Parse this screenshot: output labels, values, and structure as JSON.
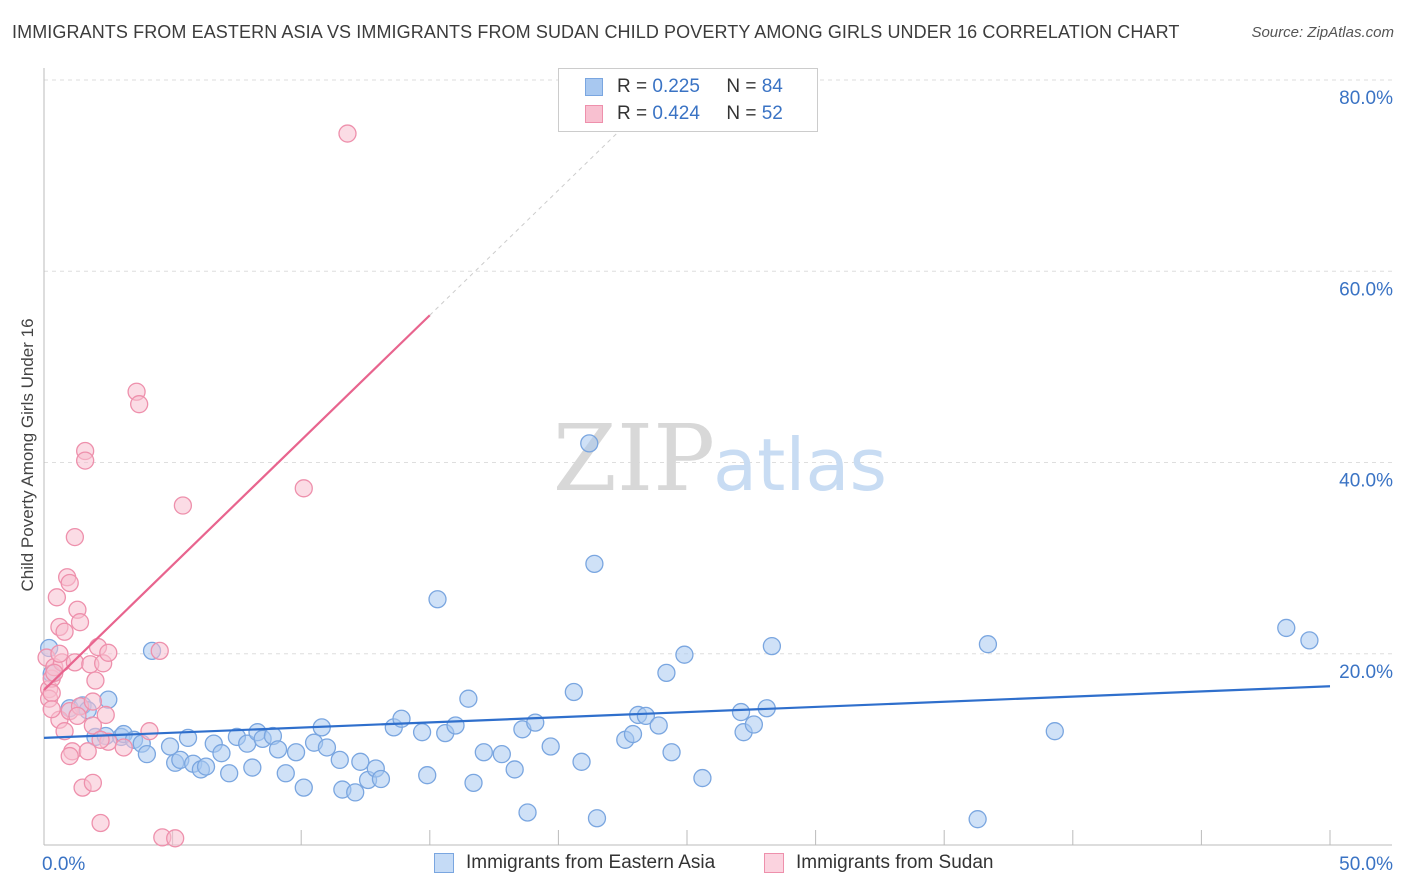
{
  "title": "IMMIGRANTS FROM EASTERN ASIA VS IMMIGRANTS FROM SUDAN CHILD POVERTY AMONG GIRLS UNDER 16 CORRELATION CHART",
  "source": "Source: ZipAtlas.com",
  "watermark": {
    "zip": "ZIP",
    "atlas": "atlas"
  },
  "legend": {
    "r_label": "R =",
    "n_label": "N =",
    "rows": [
      {
        "r": "0.225",
        "n": "84",
        "color": "#a8c8f0",
        "border": "#7aa6e0"
      },
      {
        "r": "0.424",
        "n": "52",
        "color": "#f8c0d0",
        "border": "#ee90ac"
      }
    ]
  },
  "bottom_legend": [
    {
      "label": "Immigrants from Eastern Asia",
      "color": "#c5dbf6",
      "border": "#7aa6e0"
    },
    {
      "label": "Immigrants from Sudan",
      "color": "#fbd3df",
      "border": "#ee90ac"
    }
  ],
  "chart_data": {
    "type": "scatter",
    "title": "IMMIGRANTS FROM EASTERN ASIA VS IMMIGRANTS FROM SUDAN CHILD POVERTY AMONG GIRLS UNDER 16 CORRELATION CHART",
    "xlabel": "",
    "ylabel": "Child Poverty Among Girls Under 16",
    "xlim": [
      0,
      50
    ],
    "ylim": [
      0,
      80
    ],
    "x_tick_labels": [
      {
        "value": 0,
        "label": "0.0%"
      },
      {
        "value": 50,
        "label": "50.0%"
      }
    ],
    "y_tick_labels": [
      {
        "value": 20,
        "label": "20.0%"
      },
      {
        "value": 40,
        "label": "40.0%"
      },
      {
        "value": 60,
        "label": "60.0%"
      },
      {
        "value": 80,
        "label": "80.0%"
      }
    ],
    "grid": true,
    "legend_position": "top-center",
    "series": [
      {
        "name": "Immigrants from Eastern Asia",
        "color": "#7aa6e0",
        "fill": "#a8c8f0",
        "trend": {
          "x": [
            0,
            50
          ],
          "y": [
            11.2,
            16.6
          ],
          "color": "#2f6fcc"
        },
        "points": [
          [
            0.2,
            20.6
          ],
          [
            0.3,
            17.9
          ],
          [
            1.0,
            14.3
          ],
          [
            1.5,
            14.6
          ],
          [
            1.7,
            14.1
          ],
          [
            2.0,
            11.3
          ],
          [
            2.4,
            11.4
          ],
          [
            2.5,
            15.2
          ],
          [
            3.0,
            11.3
          ],
          [
            3.1,
            11.6
          ],
          [
            3.5,
            11.0
          ],
          [
            3.8,
            10.6
          ],
          [
            4.0,
            9.5
          ],
          [
            4.2,
            20.3
          ],
          [
            4.9,
            10.3
          ],
          [
            5.1,
            8.6
          ],
          [
            5.3,
            8.9
          ],
          [
            5.6,
            11.2
          ],
          [
            5.8,
            8.5
          ],
          [
            6.1,
            7.9
          ],
          [
            6.3,
            8.2
          ],
          [
            6.6,
            10.6
          ],
          [
            6.9,
            9.6
          ],
          [
            7.2,
            7.5
          ],
          [
            7.5,
            11.3
          ],
          [
            7.9,
            10.6
          ],
          [
            8.1,
            8.1
          ],
          [
            8.3,
            11.8
          ],
          [
            8.5,
            11.1
          ],
          [
            8.9,
            11.4
          ],
          [
            9.1,
            10.0
          ],
          [
            9.4,
            7.5
          ],
          [
            9.8,
            9.7
          ],
          [
            10.1,
            6.0
          ],
          [
            10.5,
            10.7
          ],
          [
            10.8,
            12.3
          ],
          [
            11.0,
            10.2
          ],
          [
            11.5,
            8.9
          ],
          [
            11.6,
            5.8
          ],
          [
            12.1,
            5.5
          ],
          [
            12.3,
            8.7
          ],
          [
            12.6,
            6.8
          ],
          [
            12.9,
            8.0
          ],
          [
            13.1,
            6.9
          ],
          [
            13.6,
            12.3
          ],
          [
            13.9,
            13.2
          ],
          [
            14.7,
            11.8
          ],
          [
            14.9,
            7.3
          ],
          [
            15.3,
            25.7
          ],
          [
            15.6,
            11.7
          ],
          [
            16.0,
            12.5
          ],
          [
            16.5,
            15.3
          ],
          [
            16.7,
            6.5
          ],
          [
            17.1,
            9.7
          ],
          [
            17.8,
            9.5
          ],
          [
            18.3,
            7.9
          ],
          [
            18.6,
            12.1
          ],
          [
            18.8,
            3.4
          ],
          [
            19.1,
            12.8
          ],
          [
            19.7,
            10.3
          ],
          [
            20.6,
            16.0
          ],
          [
            20.9,
            8.7
          ],
          [
            21.2,
            42.0
          ],
          [
            21.4,
            29.4
          ],
          [
            21.5,
            2.8
          ],
          [
            22.6,
            11.0
          ],
          [
            22.9,
            11.6
          ],
          [
            23.1,
            13.6
          ],
          [
            23.4,
            13.5
          ],
          [
            23.9,
            12.5
          ],
          [
            24.2,
            18.0
          ],
          [
            24.4,
            9.7
          ],
          [
            24.9,
            19.9
          ],
          [
            25.6,
            7.0
          ],
          [
            27.1,
            13.9
          ],
          [
            27.2,
            11.8
          ],
          [
            27.6,
            12.6
          ],
          [
            28.1,
            14.3
          ],
          [
            28.3,
            20.8
          ],
          [
            36.3,
            2.7
          ],
          [
            36.7,
            21.0
          ],
          [
            39.3,
            11.9
          ],
          [
            48.3,
            22.7
          ],
          [
            49.2,
            21.4
          ]
        ]
      },
      {
        "name": "Immigrants from Sudan",
        "color": "#ee90ac",
        "fill": "#f8c0d0",
        "trend": {
          "x": [
            0,
            15
          ],
          "y": [
            16.2,
            55.4
          ],
          "dashed_to": {
            "x": 22.8,
            "y": 75.8
          },
          "color": "#e8648e"
        },
        "points": [
          [
            0.1,
            19.6
          ],
          [
            0.2,
            16.3
          ],
          [
            0.2,
            15.3
          ],
          [
            0.3,
            17.4
          ],
          [
            0.3,
            15.9
          ],
          [
            0.4,
            18.6
          ],
          [
            0.5,
            25.9
          ],
          [
            0.6,
            22.8
          ],
          [
            0.6,
            13.1
          ],
          [
            0.7,
            19.1
          ],
          [
            0.8,
            22.3
          ],
          [
            0.9,
            28.0
          ],
          [
            1.0,
            27.4
          ],
          [
            1.0,
            14.0
          ],
          [
            1.1,
            9.8
          ],
          [
            1.2,
            32.2
          ],
          [
            1.2,
            19.1
          ],
          [
            1.3,
            24.6
          ],
          [
            1.4,
            23.3
          ],
          [
            1.4,
            14.5
          ],
          [
            1.5,
            6.0
          ],
          [
            1.6,
            41.2
          ],
          [
            1.6,
            40.2
          ],
          [
            1.7,
            9.8
          ],
          [
            1.8,
            18.9
          ],
          [
            1.9,
            12.5
          ],
          [
            1.9,
            6.5
          ],
          [
            2.0,
            17.2
          ],
          [
            2.1,
            20.7
          ],
          [
            2.2,
            2.3
          ],
          [
            2.3,
            19.0
          ],
          [
            2.4,
            13.6
          ],
          [
            2.5,
            20.1
          ],
          [
            2.5,
            10.8
          ],
          [
            3.1,
            10.2
          ],
          [
            3.6,
            47.4
          ],
          [
            3.7,
            46.1
          ],
          [
            4.1,
            11.9
          ],
          [
            4.5,
            20.3
          ],
          [
            4.6,
            0.8
          ],
          [
            5.1,
            0.7
          ],
          [
            5.4,
            35.5
          ],
          [
            10.1,
            37.3
          ],
          [
            11.8,
            74.4
          ],
          [
            0.8,
            11.9
          ],
          [
            1.0,
            9.3
          ],
          [
            0.4,
            18.0
          ],
          [
            0.6,
            20.0
          ],
          [
            1.9,
            15.0
          ],
          [
            0.3,
            14.2
          ],
          [
            2.2,
            11.0
          ],
          [
            1.3,
            13.5
          ]
        ]
      }
    ]
  }
}
